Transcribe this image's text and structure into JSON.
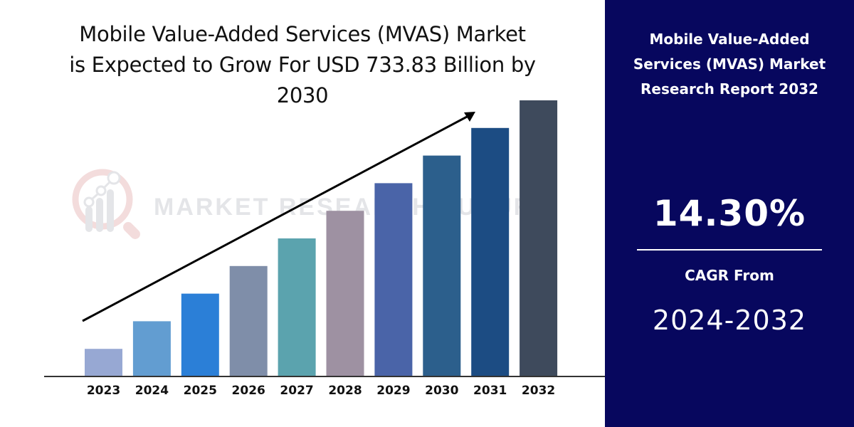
{
  "header": {
    "title_lines": [
      "Mobile Value-Added Services (MVAS) Market",
      "is Expected to Grow For USD 733.83 Billion by",
      "2030"
    ]
  },
  "watermark": {
    "text": "MARKET RESEARCH FUTURE",
    "icon": "magnifier-chart-logo-icon"
  },
  "sidebar": {
    "title_lines": [
      "Mobile Value-Added",
      "Services (MVAS) Market",
      "Research Report 2032"
    ],
    "cagr_value": "14.30%",
    "cagr_label": "CAGR From",
    "cagr_range": "2024-2032",
    "background_color": "#07075e"
  },
  "chart_data": {
    "type": "bar",
    "title": "Mobile Value-Added Services (MVAS) Market is Expected to Grow For USD 733.83 Billion by 2030",
    "xlabel": "",
    "ylabel": "",
    "categories": [
      "2023",
      "2024",
      "2025",
      "2026",
      "2027",
      "2028",
      "2029",
      "2030",
      "2031",
      "2032"
    ],
    "values": [
      1,
      2,
      3,
      4,
      5,
      6,
      7,
      8,
      9,
      10
    ],
    "value_units": "relative (unlabeled, equal increments)",
    "ylim": [
      0,
      10
    ],
    "grid": false,
    "legend": "none",
    "colors": [
      "#97a8d3",
      "#629dd1",
      "#2b7fd7",
      "#7f8ea9",
      "#5ba3ae",
      "#9e91a2",
      "#4a64a8",
      "#2c5f8c",
      "#1c4c83",
      "#3e4a5c"
    ],
    "annotations": [
      {
        "type": "trend-arrow",
        "text": "",
        "direction": "up-right"
      }
    ]
  }
}
